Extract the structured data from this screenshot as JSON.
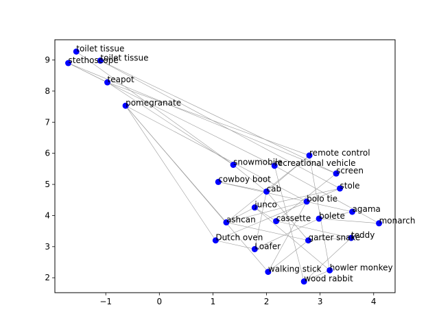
{
  "chart_data": {
    "type": "scatter",
    "title": "",
    "xlabel": "",
    "ylabel": "",
    "xlim": [
      -1.95,
      4.4
    ],
    "ylim": [
      1.52,
      9.65
    ],
    "xticks": [
      "−1",
      "0",
      "1",
      "2",
      "3",
      "4"
    ],
    "xtick_values": [
      -1,
      0,
      1,
      2,
      3,
      4
    ],
    "yticks": [
      "2",
      "3",
      "4",
      "5",
      "6",
      "7",
      "8",
      "9"
    ],
    "ytick_values": [
      2,
      3,
      4,
      5,
      6,
      7,
      8,
      9
    ],
    "grid": false,
    "point_color": "#0000ff",
    "edge_color": "#999999",
    "points": [
      {
        "label": "toilet tissue",
        "x": -1.55,
        "y": 9.27
      },
      {
        "label": "toilet tissue",
        "x": -1.1,
        "y": 8.98
      },
      {
        "label": "stethoscope",
        "x": -1.7,
        "y": 8.9
      },
      {
        "label": "teapot",
        "x": -0.97,
        "y": 8.28
      },
      {
        "label": "pomegranate",
        "x": -0.63,
        "y": 7.53
      },
      {
        "label": "remote control",
        "x": 2.8,
        "y": 5.93
      },
      {
        "label": "snowmobile",
        "x": 1.38,
        "y": 5.63
      },
      {
        "label": "recreational vehicle",
        "x": 2.15,
        "y": 5.6
      },
      {
        "label": "screen",
        "x": 3.3,
        "y": 5.35
      },
      {
        "label": "cowboy boot",
        "x": 1.1,
        "y": 5.08
      },
      {
        "label": "stole",
        "x": 3.37,
        "y": 4.87
      },
      {
        "label": "cab",
        "x": 2.0,
        "y": 4.77
      },
      {
        "label": "bolo tie",
        "x": 2.75,
        "y": 4.45
      },
      {
        "label": "junco",
        "x": 1.78,
        "y": 4.26
      },
      {
        "label": "agama",
        "x": 3.6,
        "y": 4.12
      },
      {
        "label": "bolete",
        "x": 2.98,
        "y": 3.9
      },
      {
        "label": "ashcan",
        "x": 1.25,
        "y": 3.78
      },
      {
        "label": "cassette",
        "x": 2.18,
        "y": 3.82
      },
      {
        "label": "monarch",
        "x": 4.1,
        "y": 3.75
      },
      {
        "label": "teddy",
        "x": 3.58,
        "y": 3.28
      },
      {
        "label": "Dutch oven",
        "x": 1.05,
        "y": 3.2
      },
      {
        "label": "garter snake",
        "x": 2.78,
        "y": 3.2
      },
      {
        "label": "Loafer",
        "x": 1.78,
        "y": 2.92
      },
      {
        "label": "howler monkey",
        "x": 3.18,
        "y": 2.24
      },
      {
        "label": "walking stick",
        "x": 2.03,
        "y": 2.19
      },
      {
        "label": "wood rabbit",
        "x": 2.7,
        "y": 1.88
      }
    ],
    "edges": [
      [
        2,
        3
      ],
      [
        2,
        7
      ],
      [
        2,
        8
      ],
      [
        1,
        8
      ],
      [
        0,
        6
      ],
      [
        1,
        10
      ],
      [
        3,
        5
      ],
      [
        3,
        6
      ],
      [
        4,
        16
      ],
      [
        4,
        20
      ],
      [
        4,
        12
      ],
      [
        4,
        24
      ],
      [
        5,
        11
      ],
      [
        5,
        16
      ],
      [
        5,
        23
      ],
      [
        6,
        11
      ],
      [
        7,
        25
      ],
      [
        7,
        18
      ],
      [
        9,
        11
      ],
      [
        9,
        14
      ],
      [
        10,
        13
      ],
      [
        10,
        20
      ],
      [
        11,
        22
      ],
      [
        11,
        21
      ],
      [
        12,
        16
      ],
      [
        12,
        24
      ],
      [
        13,
        16
      ],
      [
        13,
        17
      ],
      [
        14,
        15
      ],
      [
        15,
        18
      ],
      [
        15,
        22
      ],
      [
        17,
        19
      ],
      [
        19,
        21
      ],
      [
        19,
        25
      ],
      [
        20,
        22
      ],
      [
        21,
        24
      ],
      [
        23,
        25
      ],
      [
        8,
        17
      ],
      [
        16,
        21
      ],
      [
        13,
        23
      ]
    ]
  }
}
